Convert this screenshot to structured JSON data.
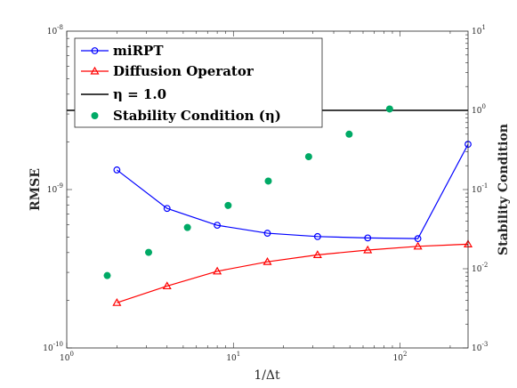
{
  "chart_data": {
    "type": "line",
    "xlabel": "1/Δt",
    "ylabel_left": "RMSE",
    "ylabel_right": "Stability Condition",
    "x_scale": "log",
    "y_left_scale": "log",
    "y_right_scale": "log",
    "xlim": [
      1,
      256
    ],
    "ylim_left": [
      1e-10,
      1e-08
    ],
    "ylim_right": [
      0.001,
      10
    ],
    "x_ticks": [
      {
        "value": 1,
        "base": "10",
        "exp": "0"
      },
      {
        "value": 10,
        "base": "10",
        "exp": "1"
      },
      {
        "value": 100,
        "base": "10",
        "exp": "2"
      }
    ],
    "y_left_ticks": [
      {
        "value": 1e-10,
        "base": "10",
        "exp": "-10"
      },
      {
        "value": 1e-09,
        "base": "10",
        "exp": "-9"
      },
      {
        "value": 1e-08,
        "base": "10",
        "exp": "-8"
      }
    ],
    "y_right_ticks": [
      {
        "value": 0.001,
        "base": "10",
        "exp": "-3"
      },
      {
        "value": 0.01,
        "base": "10",
        "exp": "-2"
      },
      {
        "value": 0.1,
        "base": "10",
        "exp": "-1"
      },
      {
        "value": 1,
        "base": "10",
        "exp": "0"
      },
      {
        "value": 10,
        "base": "10",
        "exp": "1"
      }
    ],
    "legend_position": "top-left",
    "series": [
      {
        "name": "miRPT",
        "axis": "left",
        "style": "line-circle",
        "color": "#0000ff",
        "x": [
          2,
          4,
          8,
          16,
          32,
          64,
          128,
          256
        ],
        "y": [
          1.33e-09,
          7.6e-10,
          5.95e-10,
          5.3e-10,
          5.05e-10,
          4.95e-10,
          4.9e-10,
          1.93e-09
        ]
      },
      {
        "name": "Diffusion Operator",
        "axis": "left",
        "style": "line-triangle",
        "color": "#ff0000",
        "x": [
          2,
          4,
          8,
          16,
          32,
          64,
          128,
          256
        ],
        "y": [
          1.93e-10,
          2.46e-10,
          3.05e-10,
          3.5e-10,
          3.87e-10,
          4.15e-10,
          4.38e-10,
          4.52e-10
        ]
      },
      {
        "name": "η = 1.0",
        "axis": "right",
        "style": "hline",
        "color": "#000000",
        "y": 1.0
      },
      {
        "name": "Stability Condition (η)",
        "axis": "right",
        "style": "scatter",
        "color": "#00aa66",
        "x": [
          1.75,
          3.1,
          5.3,
          9.3,
          16.2,
          28.3,
          49.5,
          86.6
        ],
        "y": [
          0.0082,
          0.0161,
          0.0332,
          0.063,
          0.128,
          0.26,
          0.5,
          1.04
        ]
      }
    ]
  }
}
